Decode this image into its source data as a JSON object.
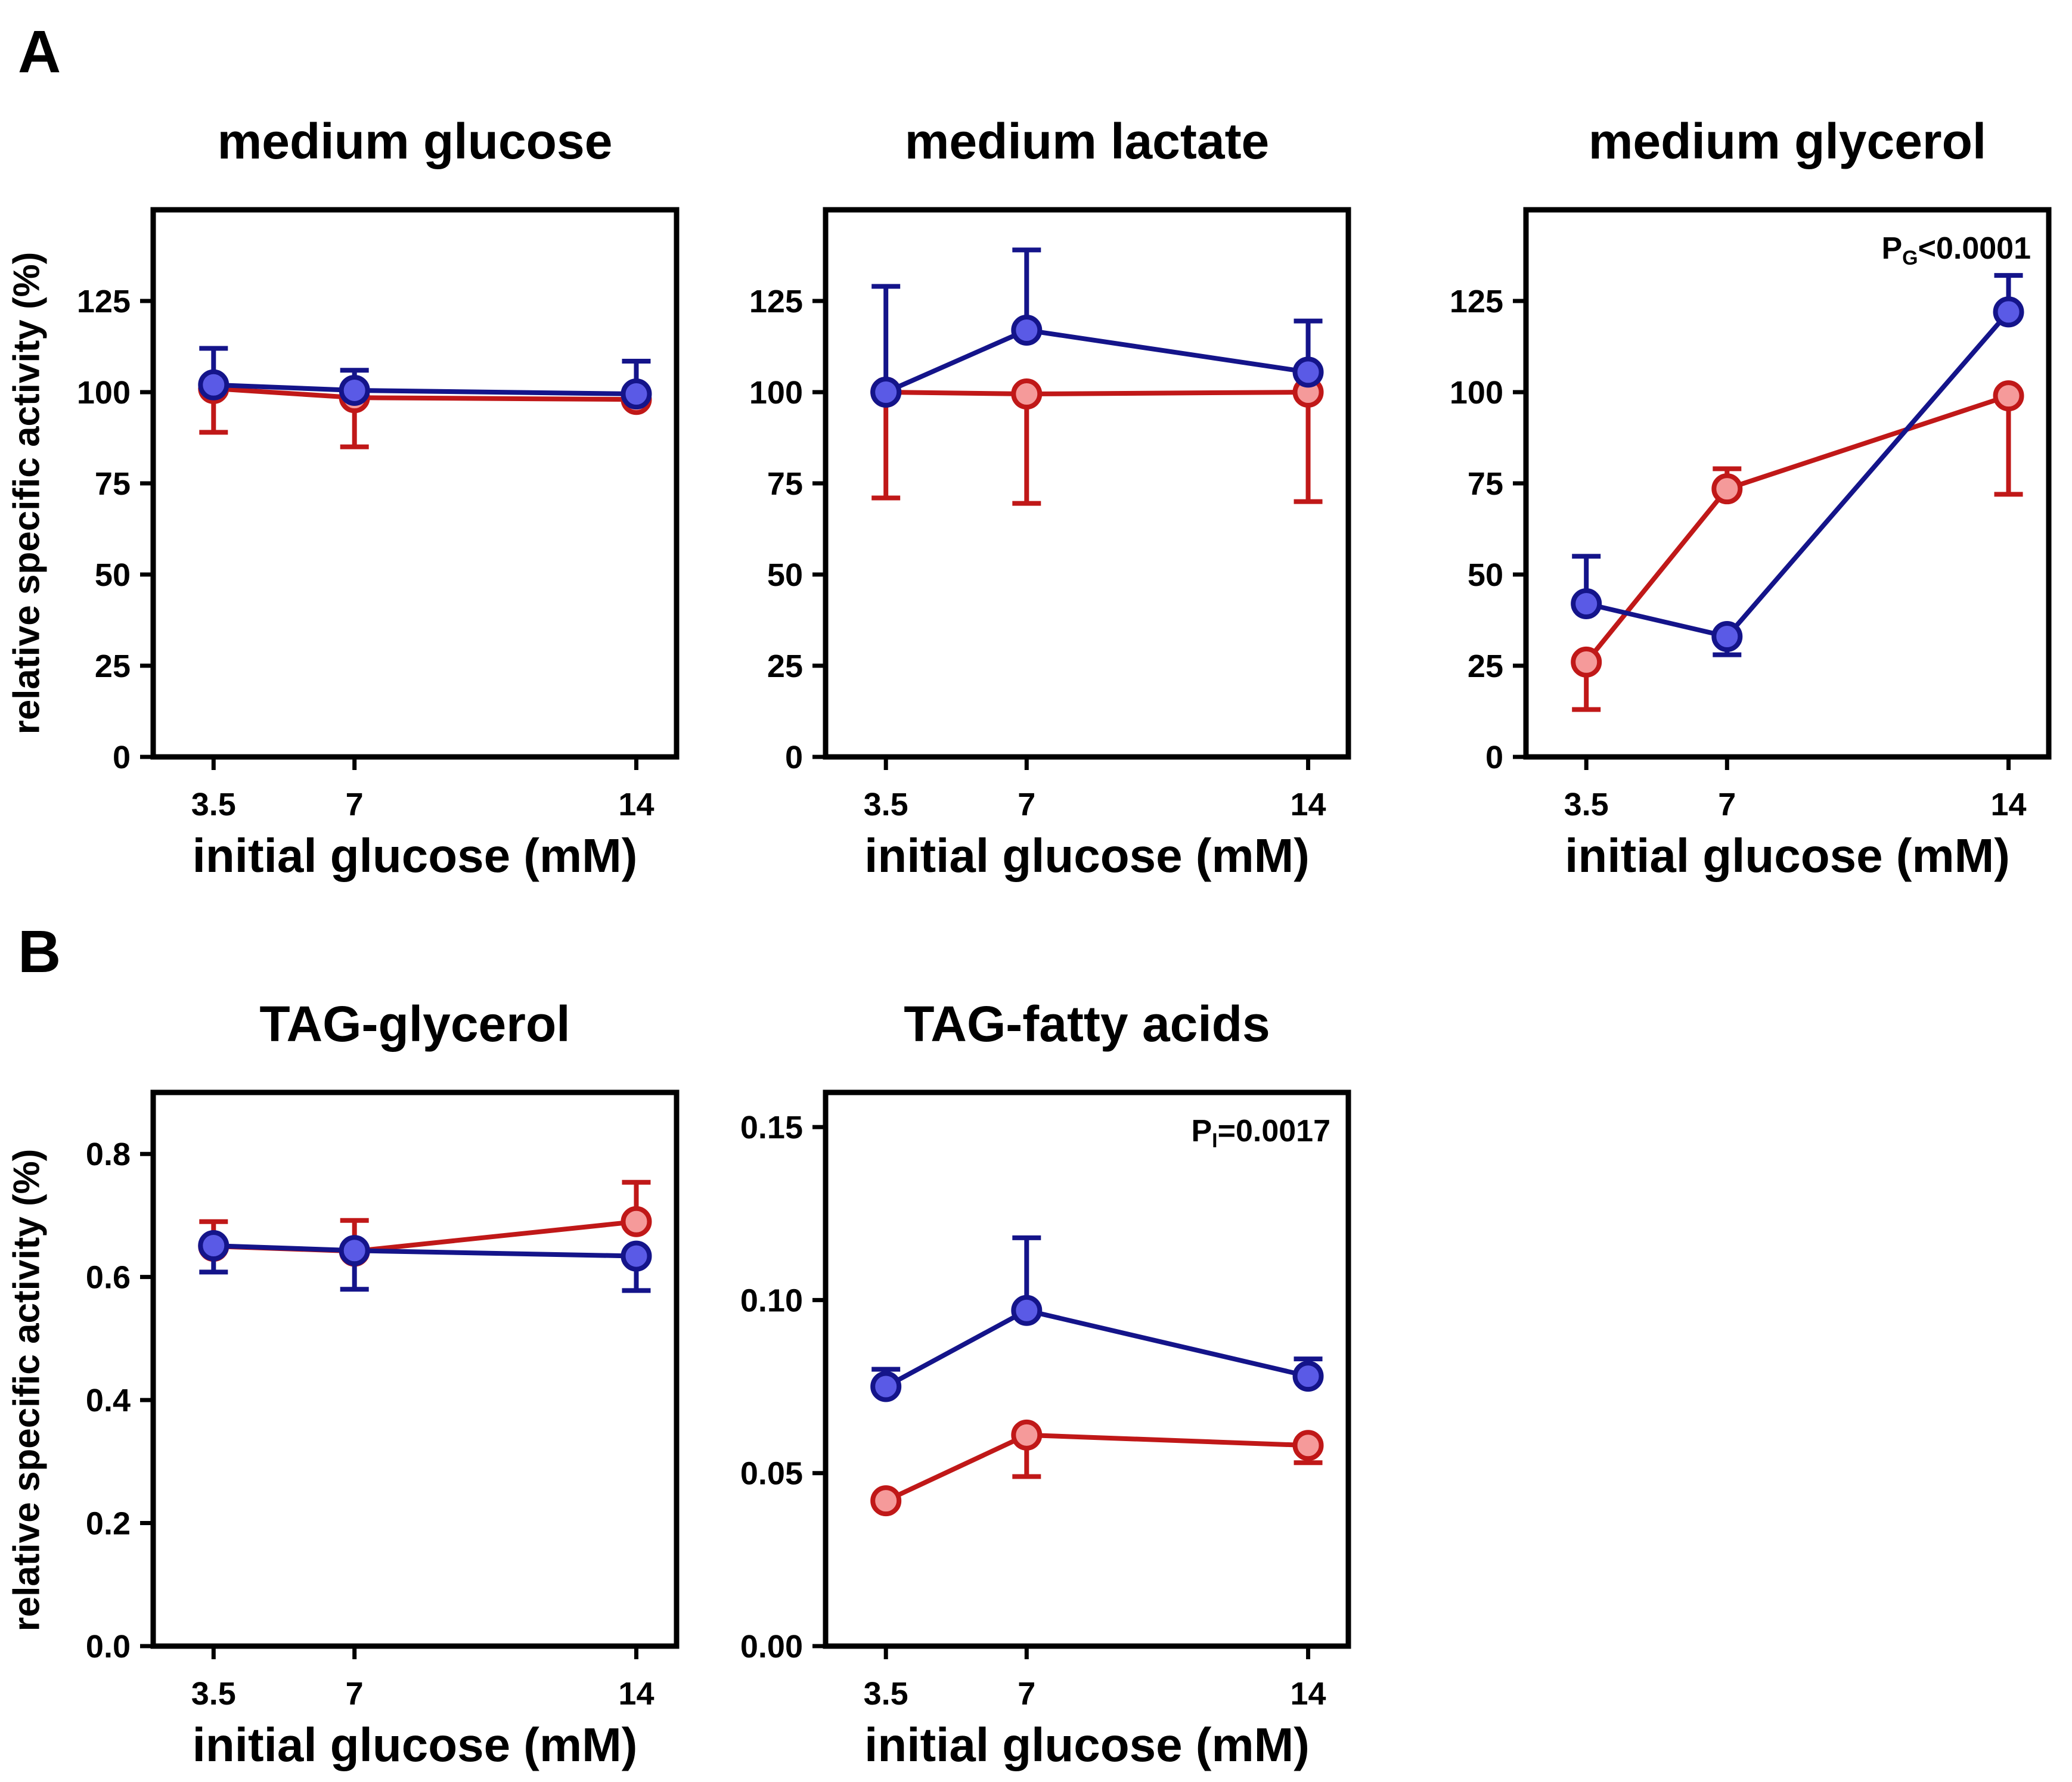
{
  "panel_labels": {
    "a": "A",
    "b": "B"
  },
  "shared": {
    "ylabel": "relative specific activity (%)",
    "xlabel": "initial glucose (mM)",
    "x_categories": [
      "3.5",
      "7",
      "14"
    ],
    "colors": {
      "blue_line": "#14148a",
      "blue_fill": "#5a5ae6",
      "red_line": "#c01818",
      "red_fill": "#f59a9a",
      "axis": "#000000"
    }
  },
  "chart_data": [
    {
      "type": "line",
      "panel": "A",
      "title": "medium glucose",
      "annotation": "",
      "xlabel": "initial glucose (mM)",
      "ylabel": "relative specific activity (%)",
      "x": [
        3.5,
        7,
        14
      ],
      "xlim": [
        2.0,
        15.0
      ],
      "ylim": [
        0,
        150
      ],
      "yticks": [
        0,
        25,
        50,
        75,
        100,
        125
      ],
      "ytick_labels": [
        "0",
        "25",
        "50",
        "75",
        "100",
        "125"
      ],
      "series": [
        {
          "name": "red",
          "values": [
            101,
            98.5,
            98
          ],
          "err_upper": [
            null,
            null,
            null
          ],
          "err_lower": [
            89,
            85,
            null
          ]
        },
        {
          "name": "blue",
          "values": [
            102,
            100.5,
            99.5
          ],
          "err_upper": [
            112,
            106,
            108.5
          ],
          "err_lower": [
            null,
            null,
            null
          ]
        }
      ]
    },
    {
      "type": "line",
      "panel": "A",
      "title": "medium lactate",
      "annotation": "",
      "xlabel": "initial glucose (mM)",
      "ylabel": "",
      "x": [
        3.5,
        7,
        14
      ],
      "xlim": [
        2.0,
        15.0
      ],
      "ylim": [
        0,
        150
      ],
      "yticks": [
        0,
        25,
        50,
        75,
        100,
        125
      ],
      "ytick_labels": [
        "0",
        "25",
        "50",
        "75",
        "100",
        "125"
      ],
      "series": [
        {
          "name": "red",
          "values": [
            100,
            99.5,
            100
          ],
          "err_upper": [
            null,
            null,
            null
          ],
          "err_lower": [
            71,
            69.5,
            70
          ]
        },
        {
          "name": "blue",
          "values": [
            100,
            117,
            105.5
          ],
          "err_upper": [
            129,
            139,
            119.5
          ],
          "err_lower": [
            null,
            null,
            null
          ]
        }
      ]
    },
    {
      "type": "line",
      "panel": "A",
      "title": "medium glycerol",
      "annotation": "P<tspan font-size='34' dy='10'>G</tspan><tspan dy='-10'>&lt;0.0001</tspan>",
      "annotation_text": "PG<0.0001",
      "xlabel": "initial glucose (mM)",
      "ylabel": "",
      "x": [
        3.5,
        7,
        14
      ],
      "xlim": [
        2.0,
        15.0
      ],
      "ylim": [
        0,
        150
      ],
      "yticks": [
        0,
        25,
        50,
        75,
        100,
        125
      ],
      "ytick_labels": [
        "0",
        "25",
        "50",
        "75",
        "100",
        "125"
      ],
      "series": [
        {
          "name": "red",
          "values": [
            26,
            73.5,
            99
          ],
          "err_upper": [
            null,
            79,
            null
          ],
          "err_lower": [
            13,
            null,
            72
          ]
        },
        {
          "name": "blue",
          "values": [
            42,
            33,
            122
          ],
          "err_upper": [
            55,
            null,
            132
          ],
          "err_lower": [
            null,
            28,
            null
          ]
        }
      ]
    },
    {
      "type": "line",
      "panel": "B",
      "title": "TAG-glycerol",
      "annotation": "",
      "xlabel": "initial glucose (mM)",
      "ylabel": "relative specific activity (%)",
      "x": [
        3.5,
        7,
        14
      ],
      "xlim": [
        2.0,
        15.0
      ],
      "ylim": [
        0,
        0.9
      ],
      "yticks": [
        0,
        0.2,
        0.4,
        0.6,
        0.8
      ],
      "ytick_labels": [
        "0.0",
        "0.2",
        "0.4",
        "0.6",
        "0.8"
      ],
      "series": [
        {
          "name": "red",
          "values": [
            0.65,
            0.642,
            0.69
          ],
          "err_upper": [
            0.69,
            0.692,
            0.754
          ],
          "err_lower": [
            null,
            null,
            null
          ]
        },
        {
          "name": "blue",
          "values": [
            0.651,
            0.643,
            0.634
          ],
          "err_upper": [
            null,
            null,
            null
          ],
          "err_lower": [
            0.608,
            0.58,
            0.578
          ]
        }
      ]
    },
    {
      "type": "line",
      "panel": "B",
      "title": "TAG-fatty acids",
      "annotation": "P<tspan font-size='34' dy='10'>I</tspan><tspan dy='-10'>=0.0017</tspan>",
      "annotation_text": "PI=0.0017",
      "xlabel": "initial glucose (mM)",
      "ylabel": "",
      "x": [
        3.5,
        7,
        14
      ],
      "xlim": [
        2.0,
        15.0
      ],
      "ylim": [
        0,
        0.16
      ],
      "yticks": [
        0,
        0.05,
        0.1,
        0.15
      ],
      "ytick_labels": [
        "0.00",
        "0.05",
        "0.10",
        "0.15"
      ],
      "series": [
        {
          "name": "red",
          "values": [
            0.042,
            0.061,
            0.058
          ],
          "err_upper": [
            null,
            null,
            null
          ],
          "err_lower": [
            null,
            0.049,
            0.053
          ]
        },
        {
          "name": "blue",
          "values": [
            0.075,
            0.097,
            0.078
          ],
          "err_upper": [
            0.08,
            0.118,
            0.083
          ],
          "err_lower": [
            null,
            null,
            null
          ]
        }
      ]
    }
  ]
}
